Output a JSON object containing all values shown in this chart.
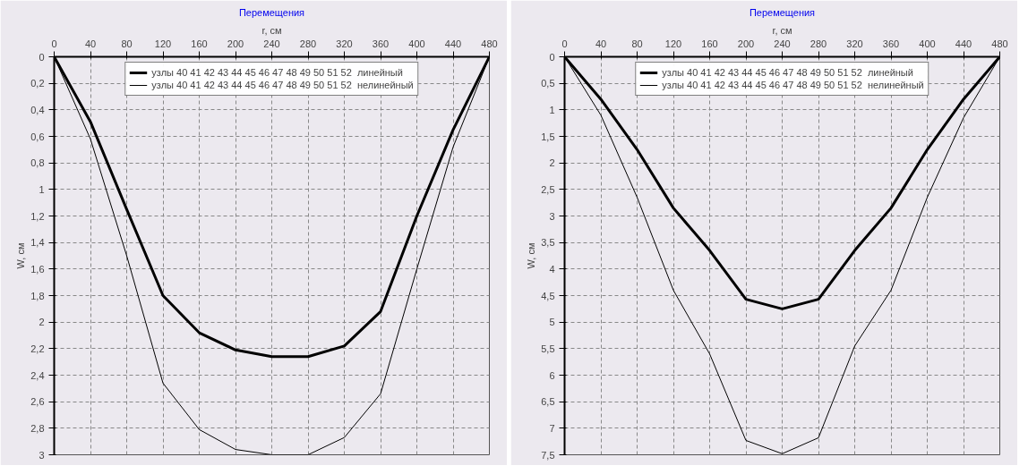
{
  "chart_data": [
    {
      "type": "line",
      "title": "Перемещения",
      "xlabel": "r, см",
      "ylabel": "W, см",
      "x": [
        0,
        40,
        80,
        120,
        160,
        200,
        240,
        280,
        320,
        360,
        400,
        440,
        480
      ],
      "series": [
        {
          "name": "узлы 40 41 42 43 44 45 46 47 48 49 50 51 52  линейный",
          "color": "#000000",
          "values": [
            0,
            0.49,
            1.15,
            1.8,
            2.08,
            2.21,
            2.26,
            2.26,
            2.18,
            1.92,
            1.2,
            0.55,
            0
          ]
        },
        {
          "name": "узлы 40 41 42 43 44 45 46 47 48 49 50 51 52  нелинейный",
          "color": "#000000",
          "values": [
            0,
            0.62,
            1.5,
            2.46,
            2.81,
            2.96,
            3.0,
            3.0,
            2.87,
            2.54,
            1.6,
            0.68,
            0
          ]
        }
      ],
      "xlim": [
        0,
        480
      ],
      "xticks": [
        0,
        40,
        80,
        120,
        160,
        200,
        240,
        280,
        320,
        360,
        400,
        440,
        480
      ],
      "ylim": [
        3,
        0
      ],
      "yticks": [
        0,
        {
          "value": 0.2,
          "label": "0,2"
        },
        {
          "value": 0.4,
          "label": "0,4"
        },
        {
          "value": 0.6,
          "label": "0,6"
        },
        {
          "value": 0.8,
          "label": "0,8"
        },
        1,
        {
          "value": 1.2,
          "label": "1,2"
        },
        {
          "value": 1.4,
          "label": "1,4"
        },
        {
          "value": 1.6,
          "label": "1,6"
        },
        {
          "value": 1.8,
          "label": "1,8"
        },
        2,
        {
          "value": 2.2,
          "label": "2,2"
        },
        {
          "value": 2.4,
          "label": "2,4"
        },
        {
          "value": 2.6,
          "label": "2,6"
        },
        {
          "value": 2.8,
          "label": "2,8"
        },
        3
      ],
      "grid": true,
      "legend": "top",
      "marker": "none",
      "line_style": "solid"
    },
    {
      "type": "line",
      "title": "Перемещения",
      "xlabel": "r, см",
      "ylabel": "W, см",
      "x": [
        0,
        40,
        80,
        120,
        160,
        200,
        240,
        280,
        320,
        360,
        400,
        440,
        480
      ],
      "series": [
        {
          "name": "узлы 40 41 42 43 44 45 46 47 48 49 50 51 52  линейный",
          "color": "#000000",
          "values": [
            0,
            0.8,
            1.75,
            2.85,
            3.65,
            4.57,
            4.75,
            4.57,
            3.65,
            2.85,
            1.75,
            0.8,
            0
          ]
        },
        {
          "name": "узлы 40 41 42 43 44 45 46 47 48 49 50 51 52  нелинейный",
          "color": "#000000",
          "values": [
            0,
            1.1,
            2.65,
            4.4,
            5.6,
            7.23,
            7.48,
            7.18,
            5.45,
            4.4,
            2.65,
            1.15,
            0
          ]
        }
      ],
      "xlim": [
        0,
        480
      ],
      "xticks": [
        0,
        40,
        80,
        120,
        160,
        200,
        240,
        280,
        320,
        360,
        400,
        440,
        480
      ],
      "ylim": [
        7.5,
        0
      ],
      "yticks": [
        0,
        {
          "value": 0.5,
          "label": "0,5"
        },
        1,
        {
          "value": 1.5,
          "label": "1,5"
        },
        2,
        {
          "value": 2.5,
          "label": "2,5"
        },
        3,
        {
          "value": 3.5,
          "label": "3,5"
        },
        4,
        {
          "value": 4.5,
          "label": "4,5"
        },
        5,
        {
          "value": 5.5,
          "label": "5,5"
        },
        6,
        {
          "value": 6.5,
          "label": "6,5"
        },
        7,
        {
          "value": 7.5,
          "label": "7,5"
        }
      ],
      "grid": true,
      "legend": "top",
      "marker": "none",
      "line_style": "solid"
    }
  ]
}
